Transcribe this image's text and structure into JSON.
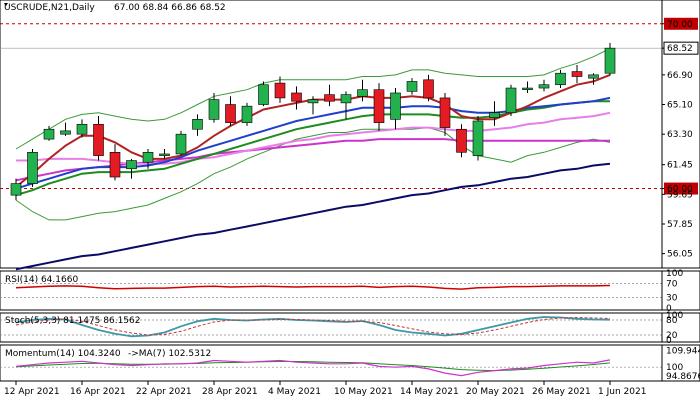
{
  "header": {
    "symbol": "USCRUDE,N21,Daily",
    "ohlc": "67.00 68.84 66.86 68.52"
  },
  "colors": {
    "bull": "#22b14c",
    "bear": "#e31b23",
    "ma_red": "#b22222",
    "ma_blue": "#1f3fcc",
    "ma_green": "#1e8c1e",
    "ma_pink": "#e87ee8",
    "ma_magenta": "#cc33cc",
    "ma_navy": "#0b0b66",
    "bollinger": "#3a9a3a",
    "level_line": "#c00000",
    "rsi": "#d00000",
    "stoch_main": "#3a9aa8",
    "stoch_signal": "#cc3333",
    "momentum": "#cc33cc",
    "momentum_ma": "#1e8c1e"
  },
  "chart_data": {
    "type": "candlestick",
    "price_axis": {
      "ylim": [
        55.3,
        71.2
      ],
      "ticks": [
        "70.00",
        "68.52",
        "66.90",
        "65.10",
        "63.30",
        "61.45",
        "60.00",
        "59.65",
        "57.85",
        "56.05"
      ],
      "tick_values": [
        70.0,
        68.52,
        66.9,
        65.1,
        63.3,
        61.45,
        60.0,
        59.65,
        57.85,
        56.05
      ],
      "highlight": [
        "70.00",
        "68.52",
        "60.00"
      ],
      "horizontal_levels": [
        70.0,
        60.0
      ]
    },
    "date_labels": [
      "12 Apr 2021",
      "16 Apr 2021",
      "22 Apr 2021",
      "28 Apr 2021",
      "4 May 2021",
      "10 May 2021",
      "14 May 2021",
      "20 May 2021",
      "26 May 2021",
      "1 Jun 2021"
    ],
    "date_label_index": [
      0,
      4,
      8,
      12,
      16,
      20,
      24,
      28,
      32,
      36
    ],
    "candles": [
      {
        "o": 59.6,
        "h": 60.6,
        "l": 59.3,
        "c": 60.3
      },
      {
        "o": 60.3,
        "h": 62.4,
        "l": 60.1,
        "c": 62.2
      },
      {
        "o": 63.0,
        "h": 63.8,
        "l": 62.9,
        "c": 63.6
      },
      {
        "o": 63.3,
        "h": 64.0,
        "l": 63.2,
        "c": 63.5
      },
      {
        "o": 63.3,
        "h": 64.2,
        "l": 63.1,
        "c": 63.9
      },
      {
        "o": 63.9,
        "h": 64.4,
        "l": 61.7,
        "c": 62.0
      },
      {
        "o": 62.2,
        "h": 62.7,
        "l": 60.5,
        "c": 60.7
      },
      {
        "o": 61.2,
        "h": 61.8,
        "l": 60.6,
        "c": 61.7
      },
      {
        "o": 61.6,
        "h": 62.4,
        "l": 61.2,
        "c": 62.2
      },
      {
        "o": 62.0,
        "h": 62.4,
        "l": 61.8,
        "c": 62.1
      },
      {
        "o": 62.1,
        "h": 63.5,
        "l": 62.0,
        "c": 63.3
      },
      {
        "o": 63.6,
        "h": 64.5,
        "l": 63.2,
        "c": 64.2
      },
      {
        "o": 64.2,
        "h": 65.8,
        "l": 64.0,
        "c": 65.4
      },
      {
        "o": 65.1,
        "h": 65.6,
        "l": 63.8,
        "c": 64.0
      },
      {
        "o": 64.0,
        "h": 65.2,
        "l": 63.8,
        "c": 65.0
      },
      {
        "o": 65.1,
        "h": 66.5,
        "l": 65.0,
        "c": 66.3
      },
      {
        "o": 66.4,
        "h": 66.8,
        "l": 65.2,
        "c": 65.5
      },
      {
        "o": 65.8,
        "h": 66.2,
        "l": 64.8,
        "c": 65.3
      },
      {
        "o": 65.2,
        "h": 65.6,
        "l": 64.5,
        "c": 65.4
      },
      {
        "o": 65.7,
        "h": 66.3,
        "l": 65.0,
        "c": 65.3
      },
      {
        "o": 65.2,
        "h": 65.9,
        "l": 64.2,
        "c": 65.7
      },
      {
        "o": 65.6,
        "h": 66.6,
        "l": 65.3,
        "c": 66.0
      },
      {
        "o": 66.0,
        "h": 66.4,
        "l": 63.5,
        "c": 64.0
      },
      {
        "o": 64.2,
        "h": 66.1,
        "l": 63.6,
        "c": 65.8
      },
      {
        "o": 65.9,
        "h": 66.7,
        "l": 65.7,
        "c": 66.5
      },
      {
        "o": 66.6,
        "h": 66.9,
        "l": 65.3,
        "c": 65.5
      },
      {
        "o": 65.5,
        "h": 65.8,
        "l": 63.2,
        "c": 63.7
      },
      {
        "o": 63.6,
        "h": 63.9,
        "l": 61.9,
        "c": 62.2
      },
      {
        "o": 62.0,
        "h": 64.4,
        "l": 61.7,
        "c": 64.1
      },
      {
        "o": 64.3,
        "h": 65.3,
        "l": 63.8,
        "c": 64.6
      },
      {
        "o": 64.6,
        "h": 66.3,
        "l": 64.4,
        "c": 66.1
      },
      {
        "o": 66.0,
        "h": 66.5,
        "l": 65.8,
        "c": 66.1
      },
      {
        "o": 66.1,
        "h": 66.6,
        "l": 65.9,
        "c": 66.3
      },
      {
        "o": 66.3,
        "h": 67.2,
        "l": 66.1,
        "c": 67.0
      },
      {
        "o": 67.1,
        "h": 67.5,
        "l": 66.4,
        "c": 66.8
      },
      {
        "o": 66.7,
        "h": 67.0,
        "l": 66.3,
        "c": 66.9
      },
      {
        "o": 67.0,
        "h": 68.84,
        "l": 66.86,
        "c": 68.52
      }
    ],
    "overlays": {
      "bb_upper": [
        62.4,
        63.0,
        63.6,
        64.2,
        64.5,
        64.6,
        64.4,
        64.2,
        64.1,
        64.2,
        64.6,
        65.1,
        65.6,
        65.8,
        66.0,
        66.4,
        66.6,
        66.6,
        66.6,
        66.6,
        66.6,
        66.8,
        66.8,
        66.9,
        67.2,
        67.2,
        67.0,
        66.9,
        66.8,
        66.8,
        66.8,
        66.8,
        66.9,
        67.3,
        67.6,
        68.0,
        68.5
      ],
      "bb_lower": [
        59.3,
        58.6,
        58.1,
        58.1,
        58.3,
        58.5,
        58.6,
        58.8,
        59.0,
        59.4,
        59.8,
        60.3,
        60.9,
        61.3,
        61.8,
        62.2,
        62.6,
        63.0,
        63.2,
        63.4,
        63.4,
        63.6,
        63.6,
        63.6,
        63.6,
        63.7,
        63.4,
        62.6,
        62.0,
        61.8,
        61.6,
        62.0,
        62.2,
        62.5,
        62.8,
        63.0,
        62.8
      ],
      "ma_red": [
        60.1,
        60.9,
        61.8,
        62.6,
        63.2,
        63.2,
        62.8,
        62.2,
        61.8,
        61.8,
        62.0,
        62.5,
        63.2,
        63.8,
        64.3,
        64.8,
        65.0,
        65.2,
        65.4,
        65.4,
        65.4,
        65.6,
        65.5,
        65.5,
        65.6,
        65.5,
        65.1,
        64.4,
        64.2,
        64.2,
        64.6,
        65.0,
        65.5,
        65.9,
        66.3,
        66.5,
        66.9
      ],
      "ma_blue": [
        60.0,
        60.3,
        60.6,
        60.9,
        61.2,
        61.3,
        61.3,
        61.3,
        61.4,
        61.6,
        61.9,
        62.3,
        62.6,
        62.9,
        63.2,
        63.5,
        63.8,
        64.1,
        64.3,
        64.5,
        64.7,
        64.9,
        64.9,
        64.9,
        65.0,
        65.0,
        64.9,
        64.7,
        64.6,
        64.6,
        64.7,
        64.9,
        65.0,
        65.1,
        65.2,
        65.3,
        65.5
      ],
      "ma_green": [
        59.6,
        59.9,
        60.3,
        60.6,
        60.9,
        61.0,
        61.0,
        61.0,
        61.1,
        61.2,
        61.5,
        61.8,
        62.1,
        62.4,
        62.7,
        63.0,
        63.3,
        63.6,
        63.8,
        64.0,
        64.2,
        64.4,
        64.5,
        64.5,
        64.5,
        64.5,
        64.4,
        64.3,
        64.3,
        64.4,
        64.6,
        64.8,
        64.9,
        65.1,
        65.2,
        65.3,
        65.3
      ],
      "ma_pink": [
        61.7,
        61.7,
        61.8,
        61.8,
        61.8,
        61.7,
        61.6,
        61.5,
        61.5,
        61.5,
        61.6,
        61.8,
        61.9,
        62.1,
        62.3,
        62.5,
        62.7,
        62.9,
        63.0,
        63.2,
        63.3,
        63.4,
        63.5,
        63.6,
        63.7,
        63.7,
        63.6,
        63.5,
        63.5,
        63.6,
        63.7,
        63.9,
        64.0,
        64.2,
        64.3,
        64.4,
        64.6
      ],
      "ma_magenta": [
        60.5,
        60.7,
        60.9,
        61.1,
        61.2,
        61.3,
        61.4,
        61.5,
        61.6,
        61.7,
        61.8,
        61.9,
        62.1,
        62.2,
        62.3,
        62.4,
        62.5,
        62.6,
        62.7,
        62.8,
        62.9,
        62.9,
        63.0,
        63.0,
        63.0,
        63.0,
        63.0,
        62.9,
        62.9,
        62.9,
        62.9,
        62.9,
        62.9,
        62.9,
        62.9,
        62.9,
        62.9
      ],
      "ma_navy": [
        55.1,
        55.3,
        55.5,
        55.7,
        55.9,
        56.0,
        56.2,
        56.4,
        56.6,
        56.8,
        57.0,
        57.2,
        57.3,
        57.5,
        57.7,
        57.9,
        58.1,
        58.3,
        58.5,
        58.7,
        58.9,
        59.0,
        59.2,
        59.4,
        59.6,
        59.7,
        59.9,
        60.1,
        60.2,
        60.4,
        60.6,
        60.7,
        60.9,
        61.1,
        61.2,
        61.4,
        61.5
      ]
    },
    "rsi": {
      "label": "RSI(14) 64.1660",
      "ylim": [
        0,
        100
      ],
      "ticks": [
        "100",
        "70",
        "30",
        "0"
      ],
      "tick_values": [
        100,
        70,
        30,
        0
      ],
      "values": [
        58,
        60,
        62,
        63,
        62,
        58,
        55,
        56,
        57,
        57,
        59,
        61,
        62,
        60,
        61,
        62,
        61,
        60,
        61,
        61,
        61,
        62,
        59,
        61,
        62,
        60,
        56,
        54,
        58,
        59,
        61,
        61,
        62,
        63,
        63,
        63,
        64.17
      ]
    },
    "stoch": {
      "label": "Stoch(5,3,3) 81.1475 86.1562",
      "ylim": [
        0,
        100
      ],
      "ticks": [
        "100",
        "80",
        "20",
        "0"
      ],
      "tick_values": [
        100,
        80,
        20,
        0
      ],
      "main": [
        70,
        80,
        85,
        82,
        60,
        40,
        25,
        15,
        18,
        30,
        55,
        75,
        85,
        80,
        78,
        82,
        85,
        80,
        78,
        75,
        72,
        76,
        60,
        40,
        30,
        25,
        18,
        25,
        40,
        55,
        70,
        85,
        92,
        90,
        85,
        82,
        81.15
      ],
      "signal": [
        60,
        72,
        80,
        84,
        75,
        58,
        40,
        28,
        20,
        22,
        35,
        55,
        72,
        80,
        80,
        80,
        82,
        82,
        80,
        78,
        75,
        74,
        70,
        58,
        45,
        32,
        25,
        22,
        28,
        40,
        55,
        70,
        82,
        88,
        90,
        88,
        86.16
      ]
    },
    "momentum": {
      "label": "Momentum(14) 104.3240",
      "ma_label": "->MA(7) 102.5312",
      "ylim": [
        93,
        112
      ],
      "ticks": [
        "109.9449",
        "100",
        "94.8676"
      ],
      "tick_values": [
        109.9449,
        100,
        94.8676
      ],
      "values": [
        100.5,
        101.5,
        102.5,
        103.0,
        103.5,
        102.5,
        101.5,
        101.0,
        101.5,
        102.0,
        102.0,
        102.5,
        104.0,
        103.5,
        103.0,
        103.5,
        104.0,
        103.0,
        102.5,
        102.0,
        102.0,
        102.5,
        100.5,
        100.0,
        100.5,
        99.0,
        96.5,
        95.0,
        97.0,
        98.0,
        99.0,
        99.5,
        101.0,
        102.0,
        103.0,
        102.5,
        104.324
      ],
      "ma": [
        100.2,
        100.8,
        101.3,
        101.8,
        102.2,
        102.3,
        102.0,
        101.8,
        101.7,
        101.8,
        102.0,
        102.2,
        102.6,
        102.8,
        103.0,
        103.2,
        103.4,
        103.4,
        103.3,
        103.0,
        102.8,
        102.6,
        102.0,
        101.5,
        101.0,
        100.3,
        99.5,
        98.6,
        98.2,
        98.0,
        98.3,
        98.8,
        99.4,
        100.1,
        100.8,
        101.6,
        102.53
      ]
    }
  }
}
